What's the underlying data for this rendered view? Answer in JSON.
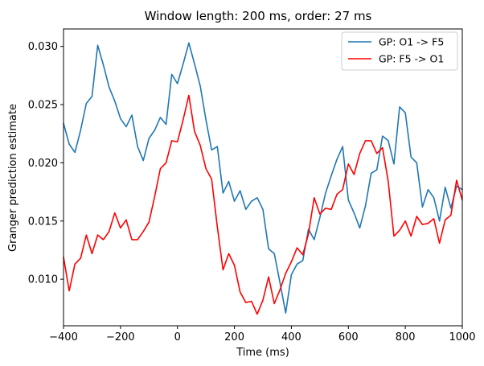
{
  "chart_data": {
    "type": "line",
    "title": "Window length: 200 ms, order: 27 ms",
    "xlabel": "Time (ms)",
    "ylabel": "Granger prediction estimate",
    "xlim": [
      -400,
      1000
    ],
    "ylim": [
      0.006,
      0.0315
    ],
    "xticks": [
      -400,
      -200,
      0,
      200,
      400,
      600,
      800,
      1000
    ],
    "xtick_labels": [
      "−400",
      "−200",
      "0",
      "200",
      "400",
      "600",
      "800",
      "1000"
    ],
    "yticks": [
      0.01,
      0.015,
      0.02,
      0.025,
      0.03
    ],
    "ytick_labels": [
      "0.010",
      "0.015",
      "0.020",
      "0.025",
      "0.030"
    ],
    "grid": false,
    "legend_position": "top-right",
    "x": [
      -400,
      -380,
      -360,
      -340,
      -320,
      -300,
      -280,
      -260,
      -240,
      -220,
      -200,
      -180,
      -160,
      -140,
      -120,
      -100,
      -80,
      -60,
      -40,
      -20,
      0,
      20,
      40,
      60,
      80,
      100,
      120,
      140,
      160,
      180,
      200,
      220,
      240,
      260,
      280,
      300,
      320,
      340,
      360,
      380,
      400,
      420,
      440,
      460,
      480,
      500,
      520,
      540,
      560,
      580,
      600,
      620,
      640,
      660,
      680,
      700,
      720,
      740,
      760,
      780,
      800,
      820,
      840,
      860,
      880,
      900,
      920,
      940,
      960,
      980,
      1000
    ],
    "series": [
      {
        "name": "GP: O1 -> F5",
        "color": "#1f77b4",
        "values": [
          0.0234,
          0.0216,
          0.0209,
          0.0228,
          0.0251,
          0.0257,
          0.0301,
          0.0284,
          0.0265,
          0.0253,
          0.0238,
          0.0231,
          0.0241,
          0.0214,
          0.0202,
          0.0221,
          0.0228,
          0.0239,
          0.0233,
          0.0276,
          0.0268,
          0.0285,
          0.0303,
          0.0285,
          0.0266,
          0.0237,
          0.0211,
          0.0214,
          0.0174,
          0.0184,
          0.0167,
          0.0176,
          0.016,
          0.0167,
          0.017,
          0.016,
          0.0126,
          0.0122,
          0.0097,
          0.0071,
          0.0104,
          0.0113,
          0.0116,
          0.0143,
          0.0134,
          0.0153,
          0.0174,
          0.0189,
          0.0203,
          0.0214,
          0.0168,
          0.0157,
          0.0144,
          0.0163,
          0.0191,
          0.0194,
          0.0223,
          0.0219,
          0.0199,
          0.0248,
          0.0243,
          0.0205,
          0.02,
          0.0162,
          0.0177,
          0.017,
          0.015,
          0.0179,
          0.0161,
          0.018,
          0.0177
        ]
      },
      {
        "name": "GP: F5 -> O1",
        "color": "#ff0000",
        "values": [
          0.0119,
          0.009,
          0.0113,
          0.0118,
          0.0138,
          0.0122,
          0.0138,
          0.0134,
          0.0141,
          0.0157,
          0.0144,
          0.0151,
          0.0134,
          0.0134,
          0.0141,
          0.0149,
          0.0171,
          0.0195,
          0.02,
          0.0219,
          0.0218,
          0.0237,
          0.0258,
          0.0227,
          0.0215,
          0.0195,
          0.0186,
          0.0145,
          0.0108,
          0.0122,
          0.0112,
          0.0089,
          0.008,
          0.0081,
          0.007,
          0.0082,
          0.0102,
          0.0079,
          0.0091,
          0.0105,
          0.0115,
          0.0127,
          0.0121,
          0.0139,
          0.017,
          0.0156,
          0.0161,
          0.016,
          0.0173,
          0.0177,
          0.0199,
          0.019,
          0.0208,
          0.0219,
          0.0219,
          0.0208,
          0.0213,
          0.0184,
          0.0137,
          0.0142,
          0.015,
          0.0137,
          0.0154,
          0.0147,
          0.0148,
          0.0152,
          0.0131,
          0.0151,
          0.0155,
          0.0185,
          0.0168
        ]
      }
    ]
  }
}
